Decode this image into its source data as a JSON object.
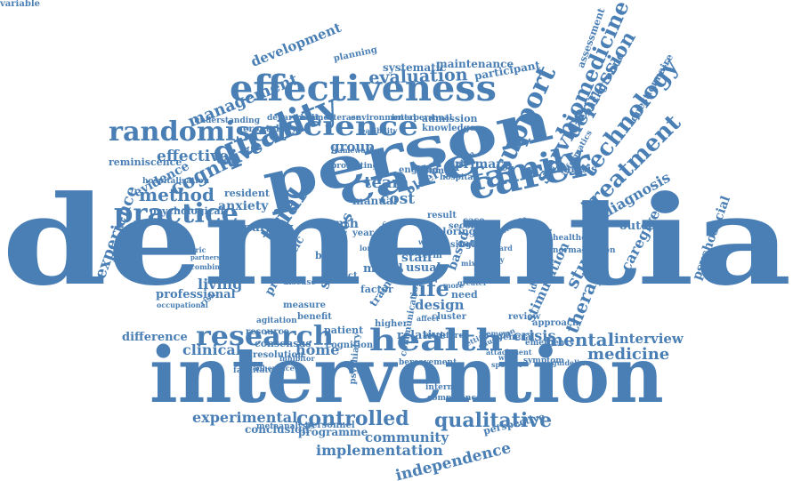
{
  "color": "#4a7fb5",
  "words": [
    "dementia",
    "intervention",
    "person",
    "effectiveness",
    "care",
    "carer",
    "family",
    "health",
    "quality",
    "science",
    "randomised",
    "practice",
    "research",
    "support",
    "biomedicine",
    "technology",
    "treatment",
    "service",
    "depression",
    "study",
    "therapy",
    "mental",
    "interview",
    "medicine",
    "experimental",
    "controlled",
    "qualitative",
    "community",
    "implementation",
    "independence",
    "conclusion",
    "programme",
    "management",
    "development",
    "evaluation",
    "systematic",
    "maintenance",
    "participant",
    "cognitive",
    "effective",
    "evidence",
    "method",
    "trial",
    "anxiety",
    "living",
    "professional",
    "home",
    "clinical",
    "difference",
    "life",
    "design",
    "strategies",
    "staff",
    "usual",
    "team",
    "cost",
    "month",
    "manual",
    "group",
    "older",
    "primary",
    "diagnosis",
    "outcome",
    "caregivers",
    "psychosocial",
    "analysis",
    "crisis",
    "stimulation",
    "experience",
    "reminiscence",
    "nursing",
    "patient",
    "cognition",
    "relative",
    "consensus",
    "resolution",
    "perspective",
    "assessment",
    "background",
    "questionnaire",
    "planning",
    "understanding",
    "gerontology",
    "department",
    "cholinesterase",
    "environmental",
    "interpersonal",
    "admission",
    "knowledge",
    "resident",
    "psychological",
    "hospitalisation",
    "pragmatic",
    "resource",
    "agitation",
    "disease",
    "measure",
    "benefit",
    "higher",
    "training",
    "communication",
    "psychiatry",
    "personnel",
    "metaanalysis",
    "occupational",
    "psychiatric",
    "feasibility",
    "framework",
    "promoting",
    "england",
    "human",
    "hospital",
    "exploring",
    "single",
    "rating",
    "based",
    "model",
    "best",
    "effect",
    "factor",
    "need",
    "cluster",
    "review",
    "general",
    "approach",
    "symptom",
    "emergency",
    "guideline",
    "identification",
    "healthcare",
    "informatics",
    "normalisation",
    "secondary",
    "result",
    "case",
    "term",
    "internal",
    "competence",
    "combination",
    "partners",
    "adherence",
    "facilitator",
    "inhibitor",
    "bereavement",
    "workforce",
    "memory",
    "education",
    "uncertain",
    "attitude",
    "setting",
    "greater",
    "more",
    "affect",
    "standard",
    "mixed",
    "safety",
    "work",
    "long",
    "year",
    "proc",
    "risk",
    "attachment",
    "well",
    "sponsor",
    "variable"
  ]
}
